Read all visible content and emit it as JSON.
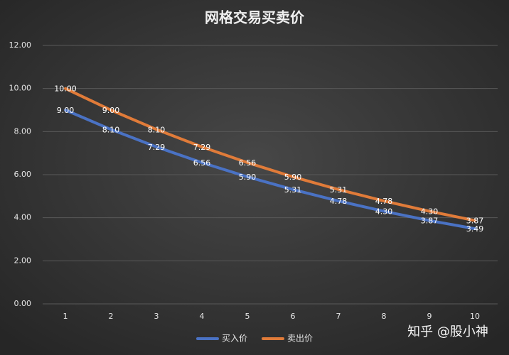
{
  "chart_data": {
    "type": "line",
    "title": "网格交易买卖价",
    "categories": [
      "1",
      "2",
      "3",
      "4",
      "5",
      "6",
      "7",
      "8",
      "9",
      "10"
    ],
    "series": [
      {
        "name": "买入价",
        "color": "#4a72c4",
        "values": [
          9.0,
          8.1,
          7.29,
          6.56,
          5.9,
          5.31,
          4.78,
          4.3,
          3.87,
          3.49
        ],
        "value_labels": [
          "9.00",
          "8.10",
          "7.29",
          "6.56",
          "5.90",
          "5.31",
          "4.78",
          "4.30",
          "3.87",
          "3.49"
        ]
      },
      {
        "name": "卖出价",
        "color": "#e07b39",
        "values": [
          10.0,
          9.0,
          8.1,
          7.29,
          6.56,
          5.9,
          5.31,
          4.78,
          4.3,
          3.87
        ],
        "value_labels": [
          "10.00",
          "9.00",
          "8.10",
          "7.29",
          "6.56",
          "5.90",
          "5.31",
          "4.78",
          "4.30",
          "3.87"
        ]
      }
    ],
    "ylim": [
      0,
      12
    ],
    "yticks": [
      {
        "value": 0,
        "label": "0.00"
      },
      {
        "value": 2,
        "label": "2.00"
      },
      {
        "value": 4,
        "label": "4.00"
      },
      {
        "value": 6,
        "label": "6.00"
      },
      {
        "value": 8,
        "label": "8.00"
      },
      {
        "value": 10,
        "label": "10.00"
      },
      {
        "value": 12,
        "label": "12.00"
      }
    ],
    "grid": true,
    "legend": "bottom",
    "watermark": "知乎 @股小神"
  }
}
